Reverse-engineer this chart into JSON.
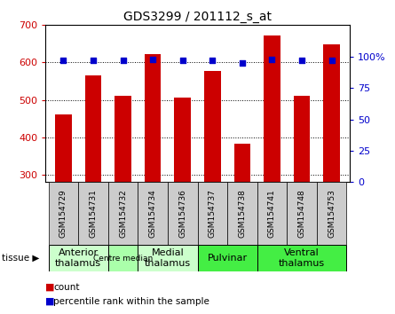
{
  "title": "GDS3299 / 201112_s_at",
  "samples": [
    "GSM154729",
    "GSM154731",
    "GSM154732",
    "GSM154734",
    "GSM154736",
    "GSM154737",
    "GSM154738",
    "GSM154741",
    "GSM154748",
    "GSM154753"
  ],
  "counts": [
    460,
    565,
    510,
    622,
    505,
    578,
    383,
    672,
    510,
    648
  ],
  "percentile_ranks": [
    97,
    97,
    97,
    98,
    97,
    97,
    95,
    98,
    97,
    97
  ],
  "ylim_left": [
    280,
    700
  ],
  "yticks_left": [
    300,
    400,
    500,
    600,
    700
  ],
  "ylim_right": [
    0,
    125
  ],
  "yticks_right": [
    0,
    25,
    50,
    75,
    100
  ],
  "yticklabels_right": [
    "0",
    "25",
    "50",
    "75",
    "100%"
  ],
  "bar_color": "#cc0000",
  "dot_color": "#0000cc",
  "tick_color_left": "#cc0000",
  "tick_color_right": "#0000cc",
  "tissue_groups": [
    {
      "label": "Anterior\nthalamus",
      "start": 0,
      "end": 2,
      "color": "#ccffcc",
      "fontsize": 8
    },
    {
      "label": "Centre median",
      "start": 2,
      "end": 3,
      "color": "#aaffaa",
      "fontsize": 6.5
    },
    {
      "label": "Medial\nthalamus",
      "start": 3,
      "end": 5,
      "color": "#ccffcc",
      "fontsize": 8
    },
    {
      "label": "Pulvinar",
      "start": 5,
      "end": 7,
      "color": "#44ee44",
      "fontsize": 8
    },
    {
      "label": "Ventral\nthalamus",
      "start": 7,
      "end": 10,
      "color": "#44ee44",
      "fontsize": 8
    }
  ],
  "sample_bg_color": "#cccccc",
  "bar_width": 0.55
}
